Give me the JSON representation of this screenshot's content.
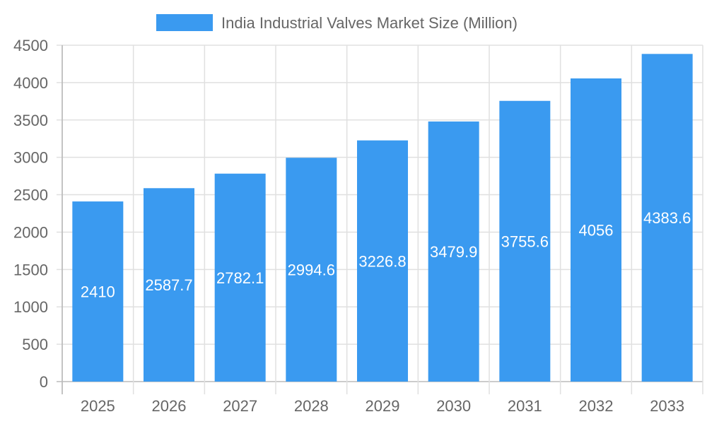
{
  "chart_data": {
    "type": "bar",
    "title": "",
    "xlabel": "",
    "ylabel": "",
    "categories": [
      "2025",
      "2026",
      "2027",
      "2028",
      "2029",
      "2030",
      "2031",
      "2032",
      "2033"
    ],
    "series": [
      {
        "name": "India Industrial Valves Market Size (Million)",
        "values": [
          2410,
          2587.7,
          2782.1,
          2994.6,
          3226.8,
          3479.9,
          3755.6,
          4056,
          4383.6
        ],
        "color": "#3a9af0"
      }
    ],
    "ylim": [
      0,
      4500
    ],
    "yticks": [
      0,
      500,
      1000,
      1500,
      2000,
      2500,
      3000,
      3500,
      4000,
      4500
    ],
    "grid": true,
    "legend_position": "top",
    "data_labels": true
  }
}
